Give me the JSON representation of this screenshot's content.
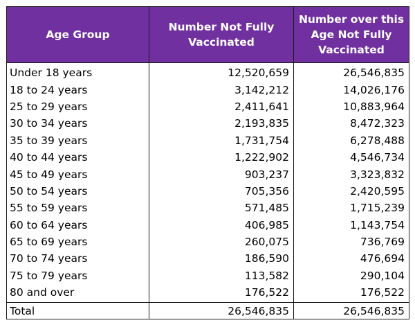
{
  "headers": {
    "age_group": "Age Group",
    "not_fully": "Number Not Fully Vaccinated",
    "over_age": "Number over this Age Not Fully Vaccinated"
  },
  "colors": {
    "header_background": "#7030a0",
    "header_text": "#ffffff"
  },
  "rows": [
    {
      "age": "Under 18 years",
      "not_fully": "12,520,659",
      "over_age": "26,546,835"
    },
    {
      "age": "18 to 24 years",
      "not_fully": "3,142,212",
      "over_age": "14,026,176"
    },
    {
      "age": "25 to 29 years",
      "not_fully": "2,411,641",
      "over_age": "10,883,964"
    },
    {
      "age": "30 to 34 years",
      "not_fully": "2,193,835",
      "over_age": "8,472,323"
    },
    {
      "age": "35 to 39 years",
      "not_fully": "1,731,754",
      "over_age": "6,278,488"
    },
    {
      "age": "40 to 44 years",
      "not_fully": "1,222,902",
      "over_age": "4,546,734"
    },
    {
      "age": "45 to 49 years",
      "not_fully": "903,237",
      "over_age": "3,323,832"
    },
    {
      "age": "50 to 54 years",
      "not_fully": "705,356",
      "over_age": "2,420,595"
    },
    {
      "age": "55 to 59 years",
      "not_fully": "571,485",
      "over_age": "1,715,239"
    },
    {
      "age": "60 to 64 years",
      "not_fully": "406,985",
      "over_age": "1,143,754"
    },
    {
      "age": "65 to 69 years",
      "not_fully": "260,075",
      "over_age": "736,769"
    },
    {
      "age": "70 to 74 years",
      "not_fully": "186,590",
      "over_age": "476,694"
    },
    {
      "age": "75 to 79 years",
      "not_fully": "113,582",
      "over_age": "290,104"
    },
    {
      "age": "80 and over",
      "not_fully": "176,522",
      "over_age": "176,522"
    }
  ],
  "total": {
    "label": "Total",
    "not_fully": "26,546,835",
    "over_age": "26,546,835"
  }
}
